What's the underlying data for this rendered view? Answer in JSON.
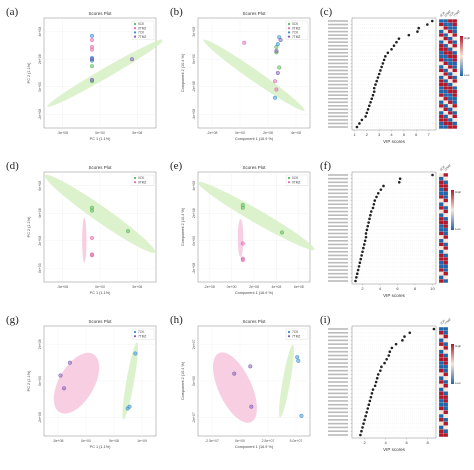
{
  "panels": [
    {
      "label": "(a)",
      "title": "Scores Plot",
      "xlabel": "PC 1 (1.1%)",
      "ylabel": "PC 2 (1.1%)",
      "x_ticks": [
        "-5e+08",
        "0e+00",
        "5e+08"
      ],
      "y_ticks": [
        "4e+08",
        "2e+08",
        "0e+00",
        "-2e+08"
      ],
      "legend": [
        "0CK",
        "0TMZ",
        "7CK",
        "7TMZ"
      ]
    },
    {
      "label": "(b)",
      "title": "Scores Plot",
      "xlabel": "Component 1 (16.9 %)",
      "ylabel": "Component 2 (10.4 %)",
      "x_ticks": [
        "-2e+08",
        "0e+00",
        "2e+08",
        "4e+08"
      ],
      "y_ticks": [
        "2e+08",
        "0e+00",
        "-2e+08",
        "-4e+08"
      ],
      "legend": [
        "0CK",
        "0TMZ",
        "7CK",
        "7TMZ"
      ]
    },
    {
      "label": "(d)",
      "title": "Scores Plot",
      "xlabel": "PC 1 (1.1%)",
      "ylabel": "PC 2 (1.1%)",
      "x_ticks": [
        "-5e+08",
        "0e+00",
        "5e+08"
      ],
      "y_ticks": [
        "6e+08",
        "4e+08",
        "2e+08",
        "0e+00"
      ],
      "legend": [
        "0CK",
        "0TMZ"
      ]
    },
    {
      "label": "(e)",
      "title": "Scores Plot",
      "xlabel": "Component 1 (16.9 %)",
      "ylabel": "Component 2 (10.4 %)",
      "x_ticks": [
        "-2e+08",
        "0e+00",
        "2e+08",
        "4e+08",
        "6e+08"
      ],
      "y_ticks": [
        "4e+08",
        "2e+08",
        "0e+00",
        "-2e+08"
      ],
      "legend": [
        "0CK",
        "0TMZ"
      ]
    },
    {
      "label": "(g)",
      "title": "Scores Plot",
      "xlabel": "PC 1 (1.1%)",
      "ylabel": "PC 2 (1.1%)",
      "x_ticks": [
        "-5e+08",
        "0e+00",
        "5e+08",
        "1e+09"
      ],
      "y_ticks": [
        "2e+08",
        "0e+00",
        "-2e+08"
      ],
      "legend": [
        "7CK",
        "7TMZ"
      ]
    },
    {
      "label": "(h)",
      "title": "Scores Plot",
      "xlabel": "Component 1 (16.9 %)",
      "ylabel": "Component 2 (10.4 %)",
      "x_ticks": [
        "-2.5e+07",
        "0e+00",
        "2.5e+07",
        "5.0e+07"
      ],
      "y_ticks": [
        "2e+07",
        "0e+00",
        "-2e+07"
      ],
      "legend": [
        "7CK",
        "7TMZ"
      ]
    }
  ],
  "vip_panels": [
    {
      "label": "(c)",
      "xlabel": "VIP scores",
      "x_ticks": [
        "1",
        "2",
        "3",
        "4",
        "5",
        "6",
        "7"
      ],
      "heat_labels": [
        "0CK",
        "0TMZ",
        "7CK",
        "7TMZ"
      ],
      "legend_high": "High",
      "legend_low": "Low"
    },
    {
      "label": "(f)",
      "xlabel": "VIP scores",
      "x_ticks": [
        "2",
        "4",
        "6",
        "8",
        "10"
      ],
      "heat_labels": [
        "0CK",
        "0TMZ"
      ],
      "legend_high": "High",
      "legend_low": "Low"
    },
    {
      "label": "(i)",
      "xlabel": "VIP scores",
      "x_ticks": [
        "2",
        "4",
        "6",
        "8"
      ],
      "heat_labels": [
        "7CK",
        "7TMZ"
      ],
      "legend_high": "High",
      "legend_low": "Low"
    }
  ],
  "colors": {
    "ck": "#5ab65a",
    "tmz": "#e06bb0",
    "ck2": "#3a8fd1",
    "tmz2": "#7b5bb5",
    "green_ellipse": "#d6f0c4",
    "pink_ellipse": "#f7c5dd",
    "heat_high": "#b2182b",
    "heat_low": "#2166ac",
    "heat_mid": "#fbe6d6"
  },
  "chart_data": [
    {
      "type": "scatter",
      "panel": "a",
      "series": [
        {
          "name": "0CK",
          "x": [
            -100000000.0,
            -100000000.0,
            -100000000.0
          ],
          "y": [
            200000000.0,
            150000000.0,
            40000000.0
          ]
        },
        {
          "name": "0TMZ",
          "x": [
            -100000000.0,
            -100000000.0,
            -100000000.0
          ],
          "y": [
            340000000.0,
            290000000.0,
            270000000.0
          ]
        },
        {
          "name": "7CK",
          "x": [
            -100000000.0,
            -100000000.0,
            -100000000.0
          ],
          "y": [
            370000000.0,
            210000000.0,
            190000000.0
          ]
        },
        {
          "name": "7TMZ",
          "x": [
            -100000000.0,
            400000000.0,
            -100000000.0
          ],
          "y": [
            200000000.0,
            200000000.0,
            50000000.0
          ]
        }
      ]
    },
    {
      "type": "scatter",
      "panel": "b",
      "series": [
        {
          "name": "0CK",
          "x": [
            260000000.0,
            260000000.0,
            280000000.0
          ],
          "y": [
            90000000.0,
            50000000.0,
            -60000000.0
          ]
        },
        {
          "name": "0TMZ",
          "x": [
            30000000.0,
            250000000.0,
            260000000.0
          ],
          "y": [
            120000000.0,
            -160000000.0,
            -220000000.0
          ]
        },
        {
          "name": "7CK",
          "x": [
            280000000.0,
            270000000.0,
            250000000.0
          ],
          "y": [
            160000000.0,
            110000000.0,
            -280000000.0
          ]
        },
        {
          "name": "7TMZ",
          "x": [
            290000000.0,
            260000000.0,
            270000000.0
          ],
          "y": [
            140000000.0,
            60000000.0,
            -100000000.0
          ]
        }
      ]
    },
    {
      "type": "scatter",
      "panel": "d",
      "series": [
        {
          "name": "0CK",
          "x": [
            -100000000.0,
            -100000000.0,
            350000000.0
          ],
          "y": [
            440000000.0,
            420000000.0,
            270000000.0
          ]
        },
        {
          "name": "0TMZ",
          "x": [
            -100000000.0,
            -100000000.0,
            -100000000.0
          ],
          "y": [
            220000000.0,
            100000000.0,
            95000000.0
          ]
        }
      ]
    },
    {
      "type": "scatter",
      "panel": "e",
      "series": [
        {
          "name": "0CK",
          "x": [
            100000000.0,
            100000000.0,
            450000000.0
          ],
          "y": [
            260000000.0,
            240000000.0,
            60000000.0
          ]
        },
        {
          "name": "0TMZ",
          "x": [
            100000000.0,
            100000000.0,
            100000000.0
          ],
          "y": [
            -20000000.0,
            -130000000.0,
            -140000000.0
          ]
        }
      ]
    },
    {
      "type": "scatter",
      "panel": "g",
      "series": [
        {
          "name": "7CK",
          "x": [
            850000000.0,
            720000000.0,
            750000000.0
          ],
          "y": [
            150000000.0,
            -150000000.0,
            -140000000.0
          ]
        },
        {
          "name": "7TMZ",
          "x": [
            -420000000.0,
            -260000000.0,
            -360000000.0
          ],
          "y": [
            30000000.0,
            100000000.0,
            -40000000.0
          ]
        }
      ]
    },
    {
      "type": "scatter",
      "panel": "h",
      "series": [
        {
          "name": "7CK",
          "x": [
            58000000.0,
            59000000.0,
            62000000.0
          ],
          "y": [
            13000000.0,
            11000000.0,
            -19000000.0
          ]
        },
        {
          "name": "7TMZ",
          "x": [
            -1000000.0,
            14000000.0,
            15000000.0
          ],
          "y": [
            4000000.0,
            8000000.0,
            -14000000.0
          ]
        }
      ]
    },
    {
      "type": "scatter",
      "panel": "c",
      "ylim_count": 31,
      "values": [
        7.3,
        6.9,
        6.2,
        6.1,
        5.4,
        4.6,
        4.4,
        4.2,
        4.0,
        3.7,
        3.5,
        3.4,
        3.3,
        3.2,
        3.1,
        3.0,
        2.9,
        2.8,
        2.7,
        2.6,
        2.6,
        2.5,
        2.4,
        2.3,
        2.2,
        2.1,
        2.0,
        1.9,
        1.6,
        1.4,
        1.2
      ]
    },
    {
      "type": "scatter",
      "panel": "f",
      "values": [
        10.0,
        6.3,
        6.2,
        4.4,
        4.1,
        3.8,
        3.6,
        3.4,
        3.3,
        3.2,
        3.0,
        2.9,
        2.8,
        2.7,
        2.6,
        2.5,
        2.4,
        2.4,
        2.3,
        2.2,
        2.1,
        2.0,
        1.9,
        1.8,
        1.7,
        1.6,
        1.5,
        1.4,
        1.3,
        1.2
      ]
    },
    {
      "type": "scatter",
      "panel": "i",
      "values": [
        8.6,
        6.3,
        5.8,
        5.6,
        5.0,
        4.6,
        4.4,
        4.3,
        4.1,
        3.9,
        3.6,
        3.5,
        3.3,
        3.2,
        3.1,
        3.0,
        2.8,
        2.7,
        2.6,
        2.5,
        2.4,
        2.3,
        2.2,
        2.1,
        2.0,
        1.9,
        1.8,
        1.7,
        1.6
      ]
    }
  ]
}
